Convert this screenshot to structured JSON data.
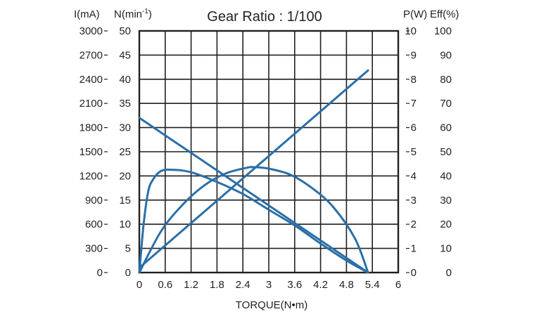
{
  "chart_data": {
    "type": "line",
    "title": "Gear Ratio : 1/100",
    "xlabel": "TORQUE(N•m)",
    "xlim": [
      0,
      6
    ],
    "x_ticks": [
      "0",
      "0.6",
      "1.2",
      "1.8",
      "2.4",
      "3",
      "3.6",
      "4.2",
      "4.8",
      "5.4",
      "6"
    ],
    "grid": true,
    "y_axes": [
      {
        "label_main": "I(mA)",
        "label_sup": "",
        "position": "left-outer",
        "lim": [
          0,
          3000
        ],
        "ticks": [
          "0",
          "300",
          "600",
          "900",
          "1200",
          "1500",
          "1800",
          "2100",
          "2400",
          "2700",
          "3000"
        ]
      },
      {
        "label_main": "N(min",
        "label_sup": "-1",
        "label_end": ")",
        "position": "left-inner",
        "lim": [
          0,
          50
        ],
        "ticks": [
          "0",
          "5",
          "10",
          "15",
          "20",
          "25",
          "30",
          "35",
          "40",
          "45",
          "50"
        ]
      },
      {
        "label_main": "P(W)",
        "label_sup": "",
        "position": "right-inner",
        "lim": [
          0,
          10
        ],
        "ticks": [
          "0",
          "1",
          "2",
          "3",
          "4",
          "5",
          "6",
          "7",
          "8",
          "9",
          "10"
        ]
      },
      {
        "label_main": "Eff(%)",
        "label_sup": "",
        "position": "right-outer",
        "lim": [
          0,
          100
        ],
        "ticks": [
          "0",
          "10",
          "20",
          "30",
          "40",
          "50",
          "60",
          "70",
          "80",
          "90",
          "100"
        ]
      }
    ],
    "series": [
      {
        "kind": "current",
        "axis": "I(mA)",
        "x": [
          0,
          5.3
        ],
        "y": [
          60,
          2510
        ]
      },
      {
        "kind": "speed",
        "axis": "N(min-1)",
        "x": [
          0,
          5.3
        ],
        "y": [
          32,
          0
        ]
      },
      {
        "kind": "power",
        "axis": "P(W)",
        "x": [
          0,
          0.5,
          1.0,
          1.5,
          2.0,
          2.5,
          2.65,
          3.0,
          3.5,
          4.0,
          4.5,
          5.0,
          5.3
        ],
        "y": [
          0,
          1.7,
          2.8,
          3.6,
          4.1,
          4.34,
          4.36,
          4.3,
          4.05,
          3.5,
          2.7,
          1.4,
          0
        ]
      },
      {
        "kind": "efficiency",
        "axis": "Eff(%)",
        "x": [
          0,
          0.1,
          0.2,
          0.3,
          0.5,
          0.8,
          1.2,
          1.8,
          2.4,
          3.0,
          3.6,
          4.2,
          4.8,
          5.3
        ],
        "y": [
          0,
          20,
          33,
          38,
          42,
          42.5,
          41.5,
          37.5,
          32.5,
          26,
          19.5,
          12,
          5,
          0
        ]
      }
    ],
    "colors": {
      "series": "#2a6fa8",
      "grid": "#231f20",
      "text": "#231f20"
    }
  }
}
